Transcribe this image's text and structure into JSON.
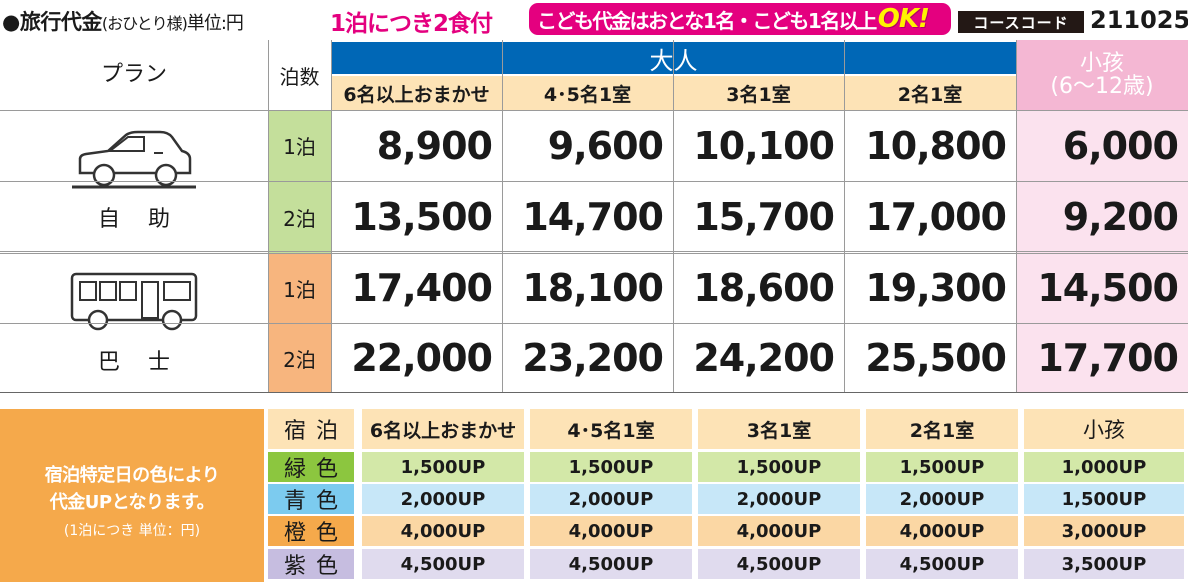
{
  "header": {
    "title": "●旅行代金",
    "title_sub": "(おひとり様)",
    "title_unit": "単位:円",
    "meals": "1泊につき2食付",
    "badge": "こども代金はおとな1名・こども1名以上",
    "badge_ok": "OK!",
    "course_code_label": "コースコード",
    "course_code": "211025"
  },
  "price_table": {
    "plan_header": "プラン",
    "nights_header": "泊数",
    "adult_header": "大人",
    "child_header_line1": "小孩",
    "child_header_line2": "(6～12歳)",
    "adult_columns": [
      "6名以上おまかせ",
      "4･5名1室",
      "3名1室",
      "2名1室"
    ],
    "colors": {
      "adult_header": "#0067b6",
      "child_header": "#f4b7d3",
      "child_cell": "#fbe2ee",
      "subheader": "#fde3b6",
      "green": "#c4df9b",
      "orange": "#f7b57e"
    },
    "groups": [
      {
        "icon": "car-icon",
        "label": "自助",
        "rows": [
          {
            "nights": "1泊",
            "color": "#c4df9b",
            "prices": [
              "8,900",
              "9,600",
              "10,100",
              "10,800"
            ],
            "child": "6,000"
          },
          {
            "nights": "2泊",
            "color": "#c4df9b",
            "prices": [
              "13,500",
              "14,700",
              "15,700",
              "17,000"
            ],
            "child": "9,200"
          }
        ]
      },
      {
        "icon": "bus-icon",
        "label": "巴士",
        "rows": [
          {
            "nights": "1泊",
            "color": "#f7b57e",
            "prices": [
              "17,400",
              "18,100",
              "18,600",
              "19,300"
            ],
            "child": "14,500"
          },
          {
            "nights": "2泊",
            "color": "#f7b57e",
            "prices": [
              "22,000",
              "23,200",
              "24,200",
              "25,500"
            ],
            "child": "17,700"
          }
        ]
      }
    ]
  },
  "surcharge": {
    "note_line1": "宿泊特定日の色により",
    "note_line2": "代金UPとなります。",
    "note_unit": "(1泊につき 単位：円)",
    "note_color": "#f5a94b",
    "header_label": "宿泊",
    "columns": [
      "6名以上おまかせ",
      "4･5名1室",
      "3名1室",
      "2名1室",
      "小孩"
    ],
    "rows": [
      {
        "label": "緑色",
        "label_color": "#8cc63f",
        "cell_color": "#d3e8a8",
        "values": [
          "1,500UP",
          "1,500UP",
          "1,500UP",
          "1,500UP",
          "1,000UP"
        ]
      },
      {
        "label": "青色",
        "label_color": "#7ccbef",
        "cell_color": "#c7e7f8",
        "values": [
          "2,000UP",
          "2,000UP",
          "2,000UP",
          "2,000UP",
          "1,500UP"
        ]
      },
      {
        "label": "橙色",
        "label_color": "#f5a94b",
        "cell_color": "#fbd7a4",
        "values": [
          "4,000UP",
          "4,000UP",
          "4,000UP",
          "4,000UP",
          "3,000UP"
        ]
      },
      {
        "label": "紫色",
        "label_color": "#c6bde0",
        "cell_color": "#e0dbee",
        "values": [
          "4,500UP",
          "4,500UP",
          "4,500UP",
          "4,500UP",
          "3,500UP"
        ]
      }
    ]
  }
}
